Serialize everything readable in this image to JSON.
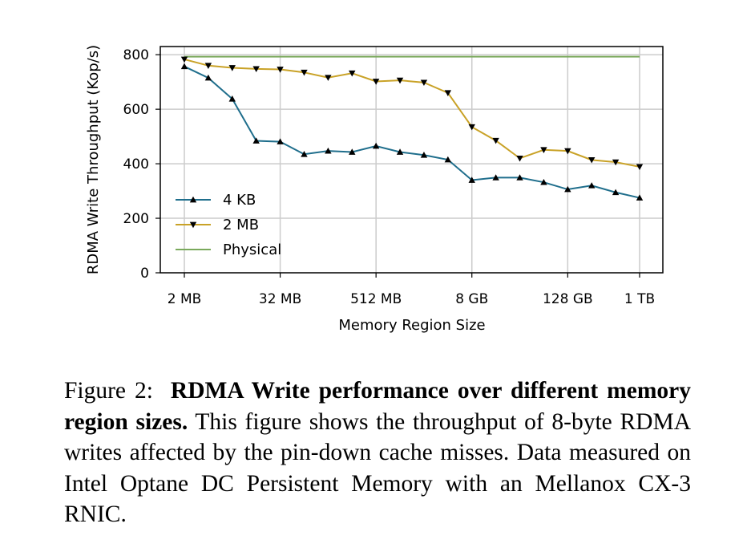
{
  "chart_data": {
    "type": "line",
    "xlabel": "Memory Region Size",
    "ylabel": "RDMA Write Throughput (Kop/s)",
    "x_tick_labels": [
      "2 MB",
      "32 MB",
      "512 MB",
      "8 GB",
      "128 GB",
      "1 TB"
    ],
    "x_tick_index": [
      0,
      4,
      8,
      12,
      16,
      19
    ],
    "y_ticks": [
      0,
      200,
      400,
      600,
      800
    ],
    "ylim": [
      0,
      830
    ],
    "grid": true,
    "legend_position": "lower-left",
    "x_index": [
      0,
      1,
      2,
      3,
      4,
      5,
      6,
      7,
      8,
      9,
      10,
      11,
      12,
      13,
      14,
      15,
      16,
      17,
      18,
      19
    ],
    "series": [
      {
        "name": "4 KB",
        "color": "#1f6e8c",
        "marker": "triangle-up",
        "values": [
          757,
          715,
          638,
          484,
          481,
          435,
          447,
          443,
          465,
          443,
          432,
          415,
          340,
          349,
          349,
          332,
          306,
          320,
          295,
          275
        ]
      },
      {
        "name": "2 MB",
        "color": "#c9a227",
        "marker": "triangle-down",
        "values": [
          783,
          760,
          752,
          748,
          746,
          735,
          716,
          732,
          702,
          706,
          698,
          660,
          535,
          485,
          420,
          451,
          447,
          414,
          406,
          389
        ]
      },
      {
        "name": "Physical",
        "color": "#7aa95c",
        "marker": "none",
        "values": [
          793,
          793,
          793,
          793,
          793,
          793,
          793,
          793,
          793,
          793,
          793,
          793,
          793,
          793,
          793,
          793,
          793,
          793,
          793,
          793
        ]
      }
    ]
  },
  "caption": {
    "label": "Figure 2:",
    "title": "RDMA Write performance over different memory region sizes.",
    "body": "This figure shows the throughput of 8-byte RDMA writes affected by the pin-down cache misses. Data measured on Intel Optane DC Persistent Memory with an Mellanox CX-3 RNIC."
  }
}
